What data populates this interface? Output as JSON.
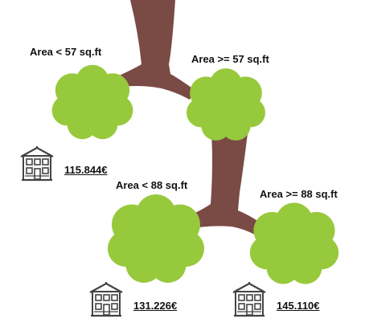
{
  "splits": [
    {
      "id": "root-left",
      "label": "Area < 57 sq.ft"
    },
    {
      "id": "root-right",
      "label": "Area >= 57 sq.ft"
    },
    {
      "id": "node2-left",
      "label": "Area < 88 sq.ft"
    },
    {
      "id": "node2-right",
      "label": "Area >= 88 sq.ft"
    }
  ],
  "leaves": [
    {
      "id": "leaf-1",
      "price": "115.844€"
    },
    {
      "id": "leaf-2",
      "price": "131.226€"
    },
    {
      "id": "leaf-3",
      "price": "145.110€"
    }
  ],
  "colors": {
    "trunk": "#7a4a45",
    "foliage": "#97c93c",
    "foliage_dark": "#7fb02b",
    "house": "#444444"
  },
  "icons": [
    "house-icon"
  ]
}
